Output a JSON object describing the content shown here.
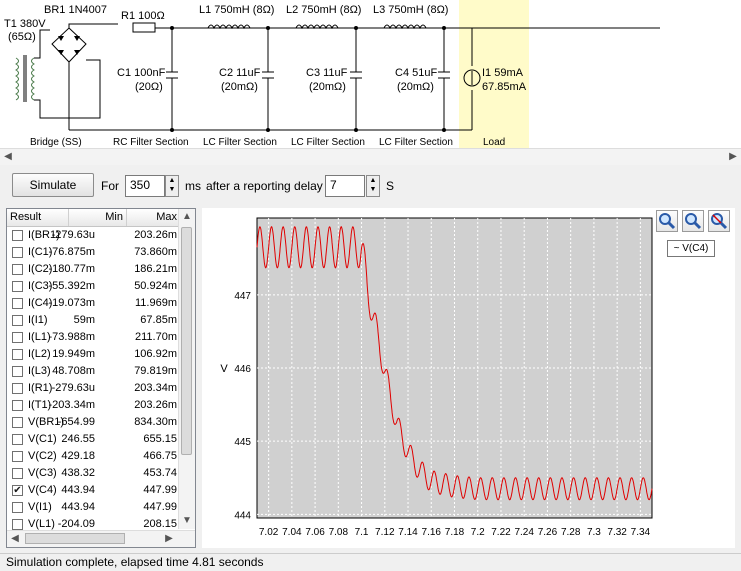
{
  "schematic": {
    "transformer": {
      "name": "T1 380V",
      "resistance": "(65Ω)"
    },
    "bridge": {
      "name": "BR1 1N4007"
    },
    "r1": "R1 100Ω",
    "inductors": [
      "L1 750mH (8Ω)",
      "L2 750mH (8Ω)",
      "L3 750mH (8Ω)"
    ],
    "caps": [
      {
        "name": "C1 100nF",
        "esr": "(20Ω)"
      },
      {
        "name": "C2 11uF",
        "esr": "(20mΩ)"
      },
      {
        "name": "C3 11uF",
        "esr": "(20mΩ)"
      },
      {
        "name": "C4 51uF",
        "esr": "(20mΩ)"
      }
    ],
    "load": {
      "name": "I1 59mA",
      "value": "67.85mA"
    },
    "captions": [
      "Bridge (SS)",
      "RC Filter Section",
      "LC Filter Section",
      "LC Filter Section",
      "LC Filter Section",
      "Load"
    ]
  },
  "controls": {
    "simulate_label": "Simulate",
    "for_label": "For",
    "duration": "350",
    "ms_label": "ms",
    "delay_label": "after a reporting delay of",
    "delay": "7",
    "s_label": "S"
  },
  "results": {
    "headers": [
      "Result",
      "Min",
      "Max"
    ],
    "rows": [
      {
        "name": "I(BR1)",
        "min": "-279.63u",
        "max": "203.26m",
        "checked": false
      },
      {
        "name": "I(C1)",
        "min": "-76.875m",
        "max": "73.860m",
        "checked": false
      },
      {
        "name": "I(C2)",
        "min": "-180.77m",
        "max": "186.21m",
        "checked": false
      },
      {
        "name": "I(C3)",
        "min": "-55.392m",
        "max": "50.924m",
        "checked": false
      },
      {
        "name": "I(C4)",
        "min": "-19.073m",
        "max": "11.969m",
        "checked": false
      },
      {
        "name": "I(I1)",
        "min": "59m",
        "max": "67.85m",
        "checked": false
      },
      {
        "name": "I(L1)",
        "min": "-73.988m",
        "max": "211.70m",
        "checked": false
      },
      {
        "name": "I(L2)",
        "min": "19.949m",
        "max": "106.92m",
        "checked": false
      },
      {
        "name": "I(L3)",
        "min": "48.708m",
        "max": "79.819m",
        "checked": false
      },
      {
        "name": "I(R1)",
        "min": "-279.63u",
        "max": "203.34m",
        "checked": false
      },
      {
        "name": "I(T1)",
        "min": "-203.34m",
        "max": "203.26m",
        "checked": false
      },
      {
        "name": "V(BR1)",
        "min": "-654.99",
        "max": "834.30m",
        "checked": false
      },
      {
        "name": "V(C1)",
        "min": "246.55",
        "max": "655.15",
        "checked": false
      },
      {
        "name": "V(C2)",
        "min": "429.18",
        "max": "466.75",
        "checked": false
      },
      {
        "name": "V(C3)",
        "min": "438.32",
        "max": "453.74",
        "checked": false
      },
      {
        "name": "V(C4)",
        "min": "443.94",
        "max": "447.99",
        "checked": true
      },
      {
        "name": "V(I1)",
        "min": "443.94",
        "max": "447.99",
        "checked": false
      },
      {
        "name": "V(L1)",
        "min": "-204.09",
        "max": "208.15",
        "checked": false
      }
    ]
  },
  "chart_data": {
    "type": "line",
    "ylabel": "V",
    "xlim": [
      7.01,
      7.35
    ],
    "ylim": [
      443.95,
      448.05
    ],
    "y_ticks": [
      "444",
      "445",
      "446",
      "447"
    ],
    "x_ticks": [
      "7.02",
      "7.04",
      "7.06",
      "7.08",
      "7.1",
      "7.12",
      "7.14",
      "7.16",
      "7.18",
      "7.2",
      "7.22",
      "7.24",
      "7.26",
      "7.28",
      "7.3",
      "7.32",
      "7.34"
    ],
    "grid": true,
    "legend": "top-right",
    "series": [
      {
        "name": "V(C4)",
        "color": "#e00000",
        "ripple_period": 0.01,
        "x": [
          7.01,
          7.1,
          7.105,
          7.11,
          7.115,
          7.12,
          7.125,
          7.13,
          7.14,
          7.15,
          7.16,
          7.18,
          7.2,
          7.35
        ],
        "y": [
          447.65,
          447.65,
          447.1,
          446.7,
          446.35,
          445.95,
          445.6,
          445.25,
          444.85,
          444.6,
          444.45,
          444.38,
          444.35,
          444.35
        ],
        "ripple_amplitude": [
          0.28,
          0.28,
          0.22,
          0.2,
          0.18,
          0.17,
          0.16,
          0.15,
          0.15,
          0.15,
          0.15,
          0.15,
          0.15,
          0.15
        ]
      }
    ]
  },
  "status": "Simulation complete, elapsed time 4.81 seconds"
}
